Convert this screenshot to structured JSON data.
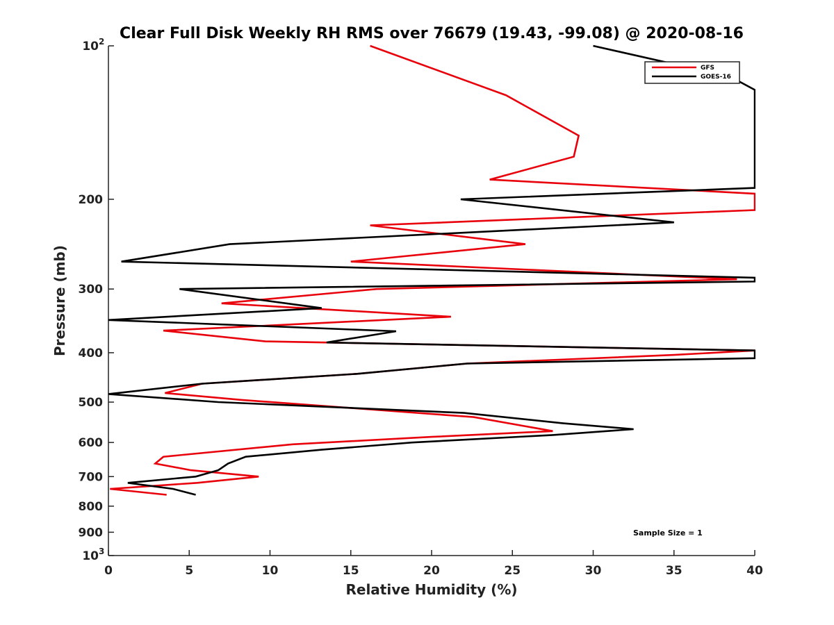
{
  "chart_data": {
    "type": "line",
    "title": "Clear Full Disk Weekly RH RMS over 76679 (19.43, -99.08) @ 2020-08-16",
    "xlabel": "Relative Humidity (%)",
    "ylabel": "Pressure (mb)",
    "xlim": [
      0,
      40
    ],
    "ylim": [
      100,
      1000
    ],
    "y_scale": "log",
    "y_reversed": true,
    "x_ticks": [
      "0",
      "5",
      "10",
      "15",
      "20",
      "25",
      "30",
      "35",
      "40"
    ],
    "y_ticks": [
      {
        "value": 100,
        "base": "10",
        "exp": "2"
      },
      {
        "value": 200,
        "label": "200"
      },
      {
        "value": 300,
        "label": "300"
      },
      {
        "value": 400,
        "label": "400"
      },
      {
        "value": 500,
        "label": "500"
      },
      {
        "value": 600,
        "label": "600"
      },
      {
        "value": 700,
        "label": "700"
      },
      {
        "value": 800,
        "label": "800"
      },
      {
        "value": 900,
        "label": "900"
      },
      {
        "value": 1000,
        "base": "10",
        "exp": "3"
      }
    ],
    "legend_position": "top-right",
    "grid": false,
    "annotation": "Sample Size = 1",
    "series": [
      {
        "name": "GFS",
        "color": "#e8000b",
        "points": [
          [
            16.2,
            100
          ],
          [
            24.6,
            125
          ],
          [
            29.1,
            150
          ],
          [
            28.8,
            165
          ],
          [
            23.6,
            183
          ],
          [
            40.0,
            195
          ],
          [
            40.0,
            210
          ],
          [
            16.2,
            225
          ],
          [
            25.8,
            245
          ],
          [
            15.0,
            265
          ],
          [
            38.9,
            287
          ],
          [
            16.6,
            300
          ],
          [
            7.0,
            320
          ],
          [
            21.2,
            340
          ],
          [
            3.4,
            362
          ],
          [
            9.7,
            380
          ],
          [
            40.0,
            396
          ],
          [
            35.0,
            404
          ],
          [
            22.2,
            420
          ],
          [
            15.4,
            440
          ],
          [
            5.8,
            460
          ],
          [
            3.5,
            480
          ],
          [
            8.2,
            495
          ],
          [
            22.6,
            535
          ],
          [
            27.5,
            570
          ],
          [
            20.0,
            585
          ],
          [
            11.4,
            605
          ],
          [
            3.4,
            640
          ],
          [
            2.9,
            660
          ],
          [
            5.1,
            680
          ],
          [
            9.3,
            700
          ],
          [
            5.5,
            720
          ],
          [
            0.1,
            740
          ],
          [
            3.6,
            760
          ]
        ]
      },
      {
        "name": "GOES-16",
        "color": "#000000",
        "points": [
          [
            30.0,
            100
          ],
          [
            38.5,
            115
          ],
          [
            40.0,
            122
          ],
          [
            40.0,
            190
          ],
          [
            21.8,
            200
          ],
          [
            35.0,
            222
          ],
          [
            7.5,
            245
          ],
          [
            0.8,
            265
          ],
          [
            40.0,
            285
          ],
          [
            40.0,
            290
          ],
          [
            4.4,
            300
          ],
          [
            13.2,
            327
          ],
          [
            0.0,
            345
          ],
          [
            17.8,
            363
          ],
          [
            13.5,
            382
          ],
          [
            40.0,
            396
          ],
          [
            40.0,
            410
          ],
          [
            22.2,
            420
          ],
          [
            15.4,
            440
          ],
          [
            5.8,
            460
          ],
          [
            0.0,
            482
          ],
          [
            6.8,
            500
          ],
          [
            22.0,
            525
          ],
          [
            28.1,
            550
          ],
          [
            32.5,
            565
          ],
          [
            27.5,
            580
          ],
          [
            18.8,
            600
          ],
          [
            13.2,
            620
          ],
          [
            8.5,
            640
          ],
          [
            7.4,
            660
          ],
          [
            6.8,
            680
          ],
          [
            5.4,
            700
          ],
          [
            1.2,
            720
          ],
          [
            4.0,
            740
          ],
          [
            5.4,
            760
          ]
        ]
      }
    ]
  }
}
